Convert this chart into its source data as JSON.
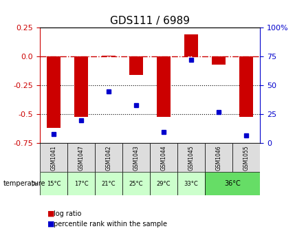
{
  "title": "GDS111 / 6989",
  "samples": [
    "GSM1041",
    "GSM1047",
    "GSM1042",
    "GSM1043",
    "GSM1044",
    "GSM1045",
    "GSM1046",
    "GSM1055"
  ],
  "temperatures": [
    "15°C",
    "17°C",
    "21°C",
    "25°C",
    "29°C",
    "33°C",
    "36°C",
    "36°C"
  ],
  "log_ratios": [
    -0.62,
    -0.52,
    0.01,
    -0.16,
    -0.52,
    0.19,
    -0.07,
    -0.52
  ],
  "percentile_ranks": [
    8,
    20,
    45,
    33,
    10,
    72,
    27,
    7
  ],
  "ylim_left": [
    -0.75,
    0.25
  ],
  "ylim_right": [
    0,
    100
  ],
  "bar_color": "#cc0000",
  "dot_color": "#0000cc",
  "background_color": "#ffffff",
  "plot_bg": "#ffffff",
  "temp_color_light": "#ccffcc",
  "temp_color_dark": "#66dd66",
  "gsm_bg": "#dddddd",
  "hline_color": "#cc0000",
  "dotted_color": "#000000",
  "left_ticks": [
    0.25,
    0.0,
    -0.25,
    -0.5,
    -0.75
  ],
  "right_ticks": [
    100,
    75,
    50,
    25,
    0
  ],
  "right_tick_labels": [
    "100%",
    "75",
    "50",
    "25",
    "0"
  ]
}
